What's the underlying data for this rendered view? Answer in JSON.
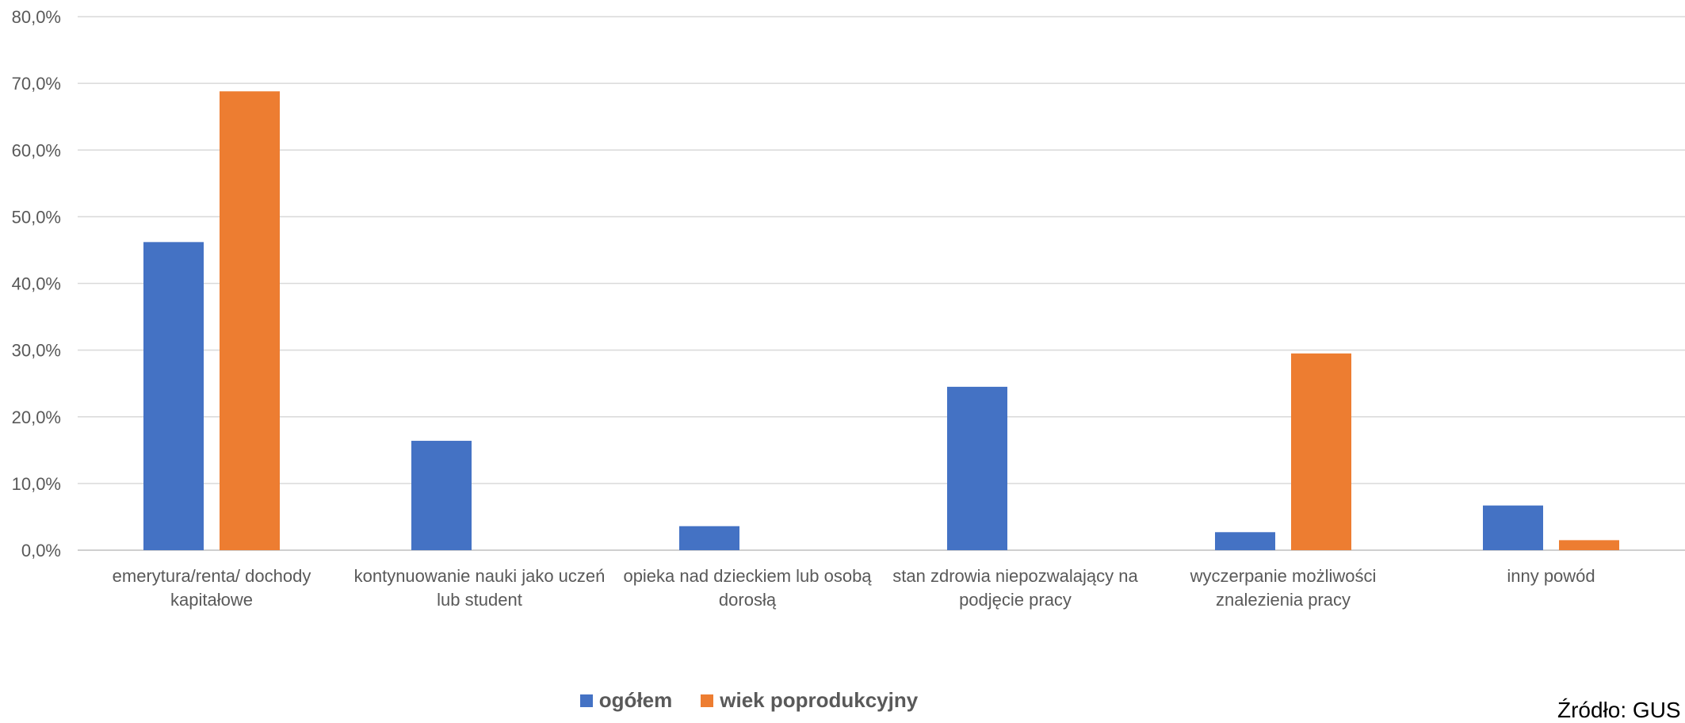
{
  "chart_data": {
    "type": "bar",
    "categories": [
      [
        "emerytura/renta/ dochody",
        "kapitałowe"
      ],
      [
        "kontynuowanie nauki jako uczeń",
        "lub student"
      ],
      [
        "opieka nad dzieckiem lub osobą",
        "dorosłą"
      ],
      [
        "stan zdrowia niepozwalający na",
        "podjęcie pracy"
      ],
      [
        "wyczerpanie możliwości",
        "znalezienia pracy"
      ],
      [
        "inny powód"
      ]
    ],
    "series": [
      {
        "name": "ogółem",
        "color": "#4472C4",
        "values": [
          46.2,
          16.4,
          3.6,
          24.5,
          2.7,
          6.7
        ]
      },
      {
        "name": "wiek poprodukcyjny",
        "color": "#ED7D31",
        "values": [
          68.8,
          0,
          0,
          0,
          29.5,
          1.5
        ]
      }
    ],
    "ylim": [
      0,
      80
    ],
    "yticks": [
      "0,0%",
      "10,0%",
      "20,0%",
      "30,0%",
      "40,0%",
      "50,0%",
      "60,0%",
      "70,0%",
      "80,0%"
    ],
    "grid": true,
    "legend_position": "bottom",
    "title": "",
    "xlabel": "",
    "ylabel": ""
  },
  "source_note": "Źródło: GUS"
}
